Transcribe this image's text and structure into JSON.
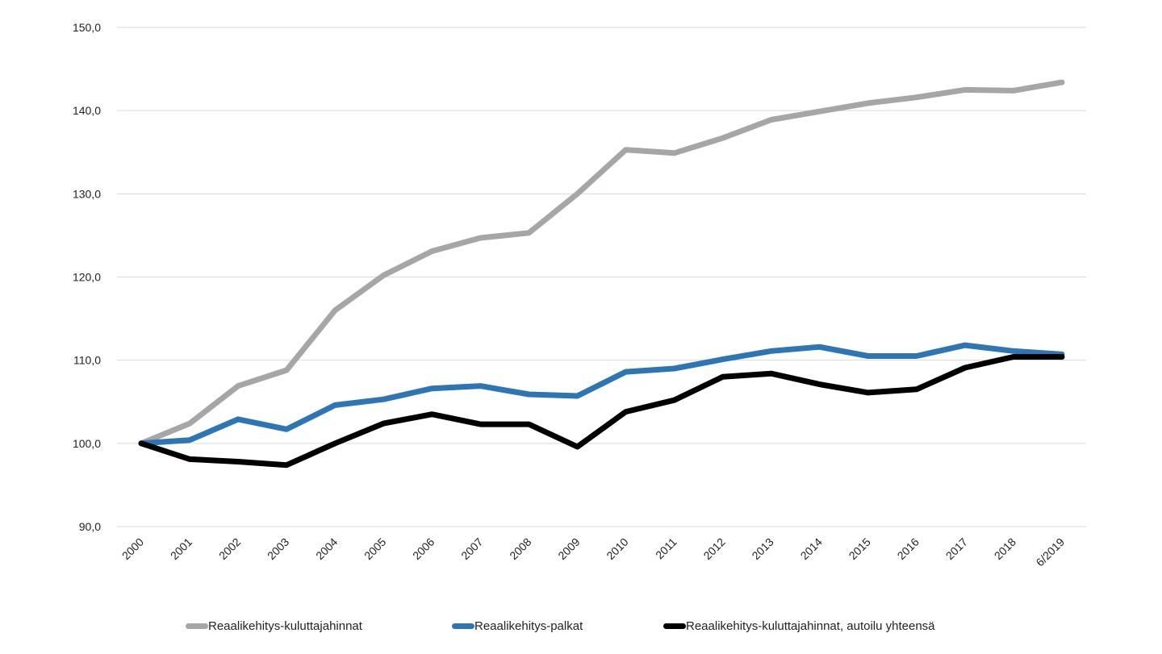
{
  "chart_data": {
    "type": "line",
    "title": "",
    "xlabel": "",
    "ylabel": "",
    "ylim": [
      90,
      150
    ],
    "yticks": [
      "90,0",
      "100,0",
      "110,0",
      "120,0",
      "130,0",
      "140,0",
      "150,0"
    ],
    "ytick_values": [
      90,
      100,
      110,
      120,
      130,
      140,
      150
    ],
    "grid": true,
    "legend_position": "bottom",
    "categories": [
      "2000",
      "2001",
      "2002",
      "2003",
      "2004",
      "2005",
      "2006",
      "2007",
      "2008",
      "2009",
      "2010",
      "2011",
      "2012",
      "2013",
      "2014",
      "2015",
      "2016",
      "2017",
      "2018",
      "6/2019"
    ],
    "series": [
      {
        "name": "Reaalikehitys-kuluttajahinnat",
        "color": "#a6a6a6",
        "values": [
          100.0,
          102.4,
          106.9,
          108.8,
          116.0,
          120.2,
          123.1,
          124.7,
          125.3,
          130.0,
          135.3,
          134.9,
          136.7,
          138.9,
          139.9,
          140.9,
          141.6,
          142.5,
          142.4,
          143.4
        ]
      },
      {
        "name": "Reaalikehitys-palkat",
        "color": "#2e75b6",
        "values": [
          100.0,
          100.4,
          102.9,
          101.7,
          104.6,
          105.3,
          106.6,
          106.9,
          105.9,
          105.7,
          108.6,
          109.0,
          110.1,
          111.1,
          111.6,
          110.5,
          110.5,
          111.8,
          111.1,
          110.7
        ]
      },
      {
        "name": "Reaalikehitys-kuluttajahinnat, autoilu yhteensä",
        "color": "#000000",
        "values": [
          100.0,
          98.1,
          97.8,
          97.4,
          100.0,
          102.4,
          103.5,
          102.3,
          102.3,
          99.6,
          103.8,
          105.2,
          108.0,
          108.4,
          107.1,
          106.1,
          106.5,
          109.1,
          110.4,
          110.4
        ]
      }
    ]
  }
}
